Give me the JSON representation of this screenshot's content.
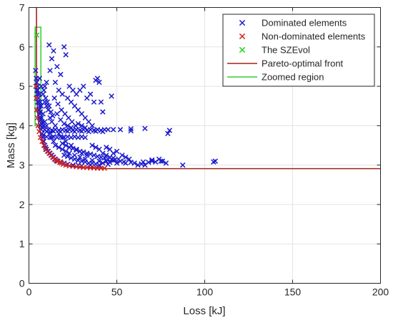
{
  "chart_data": {
    "type": "scatter",
    "title": "",
    "xlabel": "Loss [kJ]",
    "ylabel": "Mass [kg]",
    "xlim": [
      0,
      200
    ],
    "ylim": [
      0,
      7
    ],
    "xticks": [
      0,
      50,
      100,
      150,
      200
    ],
    "yticks": [
      0,
      1,
      2,
      3,
      4,
      5,
      6,
      7
    ],
    "grid": true,
    "legend_position": "top-right",
    "colors": {
      "dominated": "#1a1acc",
      "non_dominated": "#cc2020",
      "szevol": "#22cc22",
      "pareto_front": "#a0221a",
      "zoomed_region": "#33cc33",
      "grid": "#e3e3e3",
      "axis": "#262626"
    },
    "series": [
      {
        "name": "Dominated elements",
        "marker": "x",
        "points": [
          [
            3.8,
            5.4
          ],
          [
            4.2,
            5.2
          ],
          [
            4.5,
            4.9
          ],
          [
            5.0,
            4.6
          ],
          [
            5.5,
            4.4
          ],
          [
            6.0,
            4.2
          ],
          [
            6.5,
            4.0
          ],
          [
            7.0,
            3.9
          ],
          [
            7.5,
            3.8
          ],
          [
            8.0,
            3.7
          ],
          [
            8.5,
            3.6
          ],
          [
            9.0,
            3.5
          ],
          [
            9.5,
            3.45
          ],
          [
            10.0,
            3.4
          ],
          [
            11.0,
            3.35
          ],
          [
            12.0,
            3.3
          ],
          [
            13.0,
            3.25
          ],
          [
            14.0,
            3.2
          ],
          [
            15.0,
            3.15
          ],
          [
            16.0,
            3.1
          ],
          [
            18.0,
            3.08
          ],
          [
            20.0,
            3.05
          ],
          [
            22.0,
            3.02
          ],
          [
            25.0,
            3.0
          ],
          [
            28.0,
            3.0
          ],
          [
            30.0,
            2.98
          ],
          [
            35.0,
            3.0
          ],
          [
            40.0,
            3.0
          ],
          [
            45.0,
            3.02
          ],
          [
            50.0,
            3.05
          ],
          [
            55.0,
            3.05
          ],
          [
            60.0,
            3.05
          ],
          [
            65.0,
            3.08
          ],
          [
            70.0,
            3.1
          ],
          [
            75.0,
            3.1
          ],
          [
            78.0,
            3.05
          ],
          [
            5.0,
            5.0
          ],
          [
            6.0,
            4.8
          ],
          [
            6.5,
            4.6
          ],
          [
            7.0,
            4.5
          ],
          [
            8.0,
            4.3
          ],
          [
            9.0,
            4.1
          ],
          [
            10.0,
            4.0
          ],
          [
            11.0,
            3.9
          ],
          [
            12.0,
            3.8
          ],
          [
            13.0,
            3.7
          ],
          [
            14.0,
            3.6
          ],
          [
            15.0,
            3.5
          ],
          [
            17.0,
            3.45
          ],
          [
            19.0,
            3.4
          ],
          [
            21.0,
            3.35
          ],
          [
            23.0,
            3.3
          ],
          [
            26.0,
            3.25
          ],
          [
            29.0,
            3.2
          ],
          [
            32.0,
            3.15
          ],
          [
            36.0,
            3.12
          ],
          [
            40.0,
            3.1
          ],
          [
            44.0,
            3.1
          ],
          [
            48.0,
            3.12
          ],
          [
            52.0,
            3.1
          ],
          [
            6.0,
            5.2
          ],
          [
            7.0,
            5.0
          ],
          [
            8.0,
            4.8
          ],
          [
            9.0,
            4.6
          ],
          [
            10.0,
            4.5
          ],
          [
            11.0,
            4.4
          ],
          [
            12.0,
            4.2
          ],
          [
            13.0,
            4.1
          ],
          [
            15.0,
            4.0
          ],
          [
            17.0,
            3.8
          ],
          [
            19.0,
            3.7
          ],
          [
            21.0,
            3.6
          ],
          [
            24.0,
            3.5
          ],
          [
            27.0,
            3.4
          ],
          [
            30.0,
            3.3
          ],
          [
            33.0,
            3.25
          ],
          [
            9.0,
            3.9
          ],
          [
            11.0,
            3.9
          ],
          [
            13.0,
            3.88
          ],
          [
            15.0,
            3.9
          ],
          [
            17.0,
            3.88
          ],
          [
            19.0,
            3.9
          ],
          [
            21.0,
            3.88
          ],
          [
            23.0,
            3.9
          ],
          [
            25.0,
            3.88
          ],
          [
            27.0,
            3.9
          ],
          [
            29.0,
            3.88
          ],
          [
            31.0,
            3.9
          ],
          [
            33.0,
            3.88
          ],
          [
            35.0,
            3.9
          ],
          [
            37.0,
            3.88
          ],
          [
            39.0,
            3.9
          ],
          [
            41.0,
            3.88
          ],
          [
            43.0,
            3.9
          ],
          [
            10.0,
            3.85
          ],
          [
            14.0,
            3.86
          ],
          [
            18.0,
            3.85
          ],
          [
            22.0,
            3.86
          ],
          [
            26.0,
            3.85
          ],
          [
            30.0,
            3.86
          ],
          [
            34.0,
            3.85
          ],
          [
            38.0,
            3.86
          ],
          [
            42.0,
            3.85
          ],
          [
            8.0,
            3.75
          ],
          [
            10.0,
            3.72
          ],
          [
            12.0,
            3.7
          ],
          [
            14.0,
            3.72
          ],
          [
            16.0,
            3.7
          ],
          [
            18.0,
            3.72
          ],
          [
            20.0,
            3.7
          ],
          [
            22.0,
            3.72
          ],
          [
            24.0,
            3.7
          ],
          [
            26.0,
            3.72
          ],
          [
            28.0,
            3.7
          ],
          [
            30.0,
            3.72
          ],
          [
            32.0,
            3.7
          ],
          [
            11.5,
            6.05
          ],
          [
            13.0,
            5.7
          ],
          [
            14.0,
            5.9
          ],
          [
            16.0,
            5.5
          ],
          [
            18.0,
            5.3
          ],
          [
            20.0,
            6.0
          ],
          [
            21.0,
            5.8
          ],
          [
            12.0,
            5.4
          ],
          [
            15.0,
            5.1
          ],
          [
            17.0,
            4.9
          ],
          [
            19.0,
            4.8
          ],
          [
            22.0,
            4.7
          ],
          [
            24.0,
            4.6
          ],
          [
            26.0,
            4.5
          ],
          [
            28.0,
            4.4
          ],
          [
            30.0,
            4.3
          ],
          [
            32.0,
            4.2
          ],
          [
            34.0,
            4.1
          ],
          [
            36.0,
            4.0
          ],
          [
            23.0,
            5.0
          ],
          [
            25.0,
            4.9
          ],
          [
            27.0,
            4.8
          ],
          [
            29.0,
            4.9
          ],
          [
            31.0,
            5.0
          ],
          [
            33.0,
            4.7
          ],
          [
            35.0,
            4.8
          ],
          [
            37.0,
            4.6
          ],
          [
            39.0,
            5.2
          ],
          [
            40.0,
            5.1
          ],
          [
            38.0,
            5.15
          ],
          [
            14.5,
            4.7
          ],
          [
            16.5,
            4.55
          ],
          [
            18.5,
            4.4
          ],
          [
            20.5,
            4.3
          ],
          [
            22.5,
            4.2
          ],
          [
            24.5,
            4.1
          ],
          [
            26.5,
            4.0
          ],
          [
            47.0,
            4.75
          ],
          [
            42.0,
            4.35
          ],
          [
            41.0,
            4.6
          ],
          [
            44.0,
            3.45
          ],
          [
            46.0,
            3.4
          ],
          [
            48.0,
            3.3
          ],
          [
            50.0,
            3.35
          ],
          [
            53.0,
            3.25
          ],
          [
            55.0,
            3.2
          ],
          [
            57.0,
            3.15
          ],
          [
            36.0,
            3.5
          ],
          [
            38.0,
            3.45
          ],
          [
            40.0,
            3.4
          ],
          [
            42.0,
            3.3
          ],
          [
            44.0,
            3.25
          ],
          [
            46.0,
            3.2
          ],
          [
            48.0,
            3.18
          ],
          [
            51.0,
            3.15
          ],
          [
            52.0,
            3.9
          ],
          [
            58.0,
            3.92
          ],
          [
            58.0,
            3.87
          ],
          [
            66.0,
            3.93
          ],
          [
            80.0,
            3.88
          ],
          [
            79.0,
            3.8
          ],
          [
            48.0,
            3.9
          ],
          [
            45.0,
            3.9
          ],
          [
            62.0,
            3.0
          ],
          [
            66.0,
            3.0
          ],
          [
            72.0,
            3.08
          ],
          [
            74.0,
            3.15
          ],
          [
            76.0,
            3.1
          ],
          [
            70.0,
            3.13
          ],
          [
            68.0,
            3.07
          ],
          [
            64.0,
            3.03
          ],
          [
            87.5,
            3.0
          ],
          [
            105.0,
            3.08
          ],
          [
            106.0,
            3.1
          ],
          [
            4.5,
            5.1
          ],
          [
            5.0,
            4.9
          ],
          [
            5.5,
            4.7
          ],
          [
            6.0,
            4.5
          ],
          [
            6.5,
            4.35
          ],
          [
            7.0,
            4.2
          ],
          [
            7.5,
            4.1
          ],
          [
            8.0,
            4.0
          ],
          [
            4.8,
            4.8
          ],
          [
            5.3,
            4.6
          ],
          [
            5.8,
            4.4
          ],
          [
            6.3,
            4.3
          ],
          [
            6.8,
            4.15
          ],
          [
            7.3,
            4.05
          ],
          [
            7.8,
            3.95
          ],
          [
            20.0,
            3.25
          ],
          [
            22.0,
            3.22
          ],
          [
            24.0,
            3.18
          ],
          [
            26.0,
            3.15
          ],
          [
            28.0,
            3.12
          ],
          [
            30.0,
            3.1
          ],
          [
            32.0,
            3.08
          ],
          [
            34.0,
            3.05
          ],
          [
            36.0,
            3.05
          ],
          [
            38.0,
            3.03
          ],
          [
            42.0,
            3.05
          ],
          [
            46.0,
            3.07
          ],
          [
            54.0,
            3.08
          ],
          [
            58.0,
            3.07
          ],
          [
            19.0,
            3.55
          ],
          [
            21.0,
            3.5
          ],
          [
            23.0,
            3.45
          ],
          [
            25.0,
            3.42
          ],
          [
            27.0,
            3.38
          ],
          [
            29.0,
            3.35
          ],
          [
            31.0,
            3.33
          ],
          [
            33.0,
            3.3
          ],
          [
            35.0,
            3.28
          ],
          [
            37.0,
            3.25
          ],
          [
            39.0,
            3.22
          ],
          [
            41.0,
            3.2
          ],
          [
            43.0,
            3.18
          ],
          [
            45.0,
            3.15
          ],
          [
            47.0,
            3.14
          ],
          [
            49.0,
            3.13
          ],
          [
            16.0,
            4.3
          ],
          [
            18.0,
            4.15
          ],
          [
            20.0,
            4.05
          ],
          [
            22.0,
            4.0
          ],
          [
            24.0,
            3.95
          ],
          [
            28.0,
            4.05
          ],
          [
            30.0,
            4.0
          ],
          [
            32.0,
            3.95
          ],
          [
            9.5,
            4.7
          ],
          [
            10.5,
            4.6
          ],
          [
            11.5,
            4.5
          ],
          [
            12.5,
            4.35
          ],
          [
            13.5,
            4.25
          ],
          [
            8.5,
            4.9
          ],
          [
            9.0,
            5.0
          ],
          [
            10.0,
            5.1
          ]
        ]
      },
      {
        "name": "Non-dominated elements",
        "marker": "x",
        "points": [
          [
            3.9,
            5.0
          ],
          [
            4.1,
            4.7
          ],
          [
            4.4,
            4.4
          ],
          [
            4.8,
            4.2
          ],
          [
            5.2,
            4.0
          ],
          [
            5.8,
            3.85
          ],
          [
            6.5,
            3.7
          ],
          [
            7.5,
            3.6
          ],
          [
            8.5,
            3.5
          ],
          [
            9.5,
            3.4
          ],
          [
            10.5,
            3.35
          ],
          [
            11.5,
            3.3
          ],
          [
            12.5,
            3.25
          ],
          [
            13.5,
            3.2
          ],
          [
            14.5,
            3.15
          ],
          [
            15.5,
            3.12
          ],
          [
            16.5,
            3.1
          ],
          [
            17.5,
            3.07
          ],
          [
            18.5,
            3.05
          ],
          [
            19.5,
            3.02
          ],
          [
            21.0,
            3.0
          ],
          [
            23.0,
            2.98
          ],
          [
            25.0,
            2.97
          ],
          [
            27.0,
            2.96
          ],
          [
            29.0,
            2.95
          ],
          [
            31.0,
            2.94
          ],
          [
            33.0,
            2.94
          ],
          [
            35.0,
            2.93
          ],
          [
            37.0,
            2.93
          ],
          [
            39.0,
            2.92
          ],
          [
            41.0,
            2.92
          ],
          [
            43.0,
            2.92
          ]
        ]
      },
      {
        "name": "The SZEvol",
        "marker": "x",
        "points": [
          [
            4.5,
            6.3
          ]
        ]
      }
    ],
    "lines": [
      {
        "name": "Pareto-optimal front",
        "points": [
          [
            4.3,
            7.0
          ],
          [
            4.3,
            5.2
          ],
          [
            4.5,
            4.7
          ],
          [
            5.0,
            4.3
          ],
          [
            5.8,
            3.95
          ],
          [
            7.0,
            3.7
          ],
          [
            8.5,
            3.5
          ],
          [
            10.5,
            3.35
          ],
          [
            13.0,
            3.22
          ],
          [
            16.0,
            3.12
          ],
          [
            19.0,
            3.04
          ],
          [
            23.0,
            2.98
          ],
          [
            28.0,
            2.95
          ],
          [
            33.0,
            2.93
          ],
          [
            40.0,
            2.92
          ],
          [
            45.0,
            2.91
          ],
          [
            200.0,
            2.91
          ]
        ]
      }
    ],
    "regions": [
      {
        "name": "Zoomed region",
        "x": [
          3.5,
          6.8
        ],
        "y": [
          4.0,
          6.5
        ]
      }
    ]
  }
}
